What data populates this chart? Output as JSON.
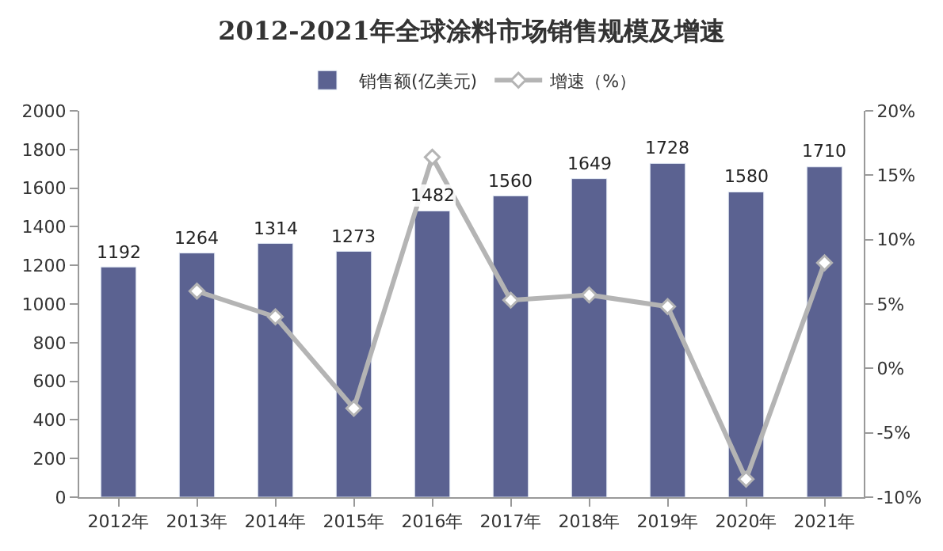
{
  "chart_data": {
    "type": "bar",
    "title": "2012-2021年全球涂料市场销售规模及增速",
    "categories": [
      "2012年",
      "2013年",
      "2014年",
      "2015年",
      "2016年",
      "2017年",
      "2018年",
      "2019年",
      "2020年",
      "2021年"
    ],
    "series": [
      {
        "name": "销售额(亿美元)",
        "color": "#5b6291",
        "values": [
          1192,
          1264,
          1314,
          1273,
          1482,
          1560,
          1649,
          1728,
          1580,
          1710
        ],
        "value_labels": [
          "1192",
          "1264",
          "1314",
          "1273",
          "1482",
          "1560",
          "1649",
          "1728",
          "1580",
          "1710"
        ]
      },
      {
        "name": "增速（%）",
        "type": "line",
        "axis": "y2",
        "color": "#b4b4b4",
        "marker": "diamond",
        "values": [
          null,
          6.0,
          4.0,
          -3.1,
          16.4,
          5.3,
          5.7,
          4.8,
          -8.6,
          8.2
        ]
      }
    ],
    "ylim": [
      0,
      2000
    ],
    "yticks": [
      0,
      200,
      400,
      600,
      800,
      1000,
      1200,
      1400,
      1600,
      1800,
      2000
    ],
    "y2lim": [
      -10,
      20
    ],
    "y2ticks": [
      {
        "value": -10,
        "label": "-10%"
      },
      {
        "value": -5,
        "label": "-5%"
      },
      {
        "value": 0,
        "label": "0%"
      },
      {
        "value": 5,
        "label": "5%"
      },
      {
        "value": 10,
        "label": "10%"
      },
      {
        "value": 15,
        "label": "15%"
      },
      {
        "value": 20,
        "label": "20%"
      }
    ],
    "legend": "top"
  }
}
